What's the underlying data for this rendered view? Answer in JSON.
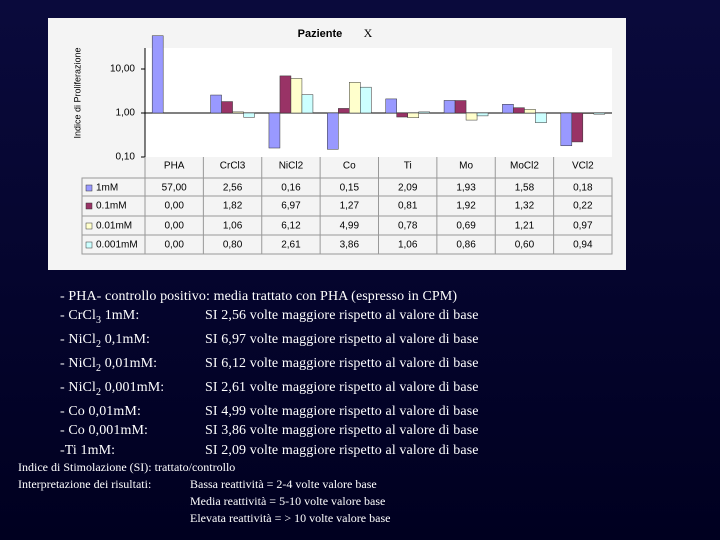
{
  "chart_data": {
    "type": "bar",
    "title": "Paziente",
    "subtitle": "X",
    "y_label": "Indice di Proliferazione",
    "log_scale": true,
    "bar_origin": 1,
    "categories": [
      "PHA",
      "CrCl3",
      "NiCl2",
      "Co",
      "Ti",
      "Mo",
      "MoCl2",
      "VCl2"
    ],
    "ylim": [
      0.1,
      30
    ],
    "yticks": [
      {
        "value": 10,
        "label": "10,00"
      },
      {
        "value": 1,
        "label": "1,00"
      },
      {
        "value": 0.1,
        "label": "0,10"
      }
    ],
    "series": [
      {
        "name": "1mM",
        "color": "#9999ff",
        "values": [
          57,
          2.56,
          0.16,
          0.15,
          2.09,
          1.93,
          1.58,
          0.18
        ],
        "value_labels": [
          "57,00",
          "2,56",
          "0,16",
          "0,15",
          "2,09",
          "1,93",
          "1,58",
          "0,18"
        ]
      },
      {
        "name": "0.1mM",
        "color": "#993366",
        "values": [
          0,
          1.82,
          6.97,
          1.27,
          0.81,
          1.92,
          1.32,
          0.22
        ],
        "value_labels": [
          "0,00",
          "1,82",
          "6,97",
          "1,27",
          "0,81",
          "1,92",
          "1,32",
          "0,22"
        ]
      },
      {
        "name": "0.01mM",
        "color": "#ffffcc",
        "values": [
          0,
          1.06,
          6.12,
          4.99,
          0.78,
          0.69,
          1.21,
          0.97
        ],
        "value_labels": [
          "0,00",
          "1,06",
          "6,12",
          "4,99",
          "0,78",
          "0,69",
          "1,21",
          "0,97"
        ]
      },
      {
        "name": "0.001mM",
        "color": "#ccffff",
        "values": [
          0,
          0.8,
          2.61,
          3.86,
          1.06,
          0.86,
          0.6,
          0.94
        ],
        "value_labels": [
          "0,00",
          "0,80",
          "2,61",
          "3,86",
          "1,06",
          "0,86",
          "0,60",
          "0,94"
        ]
      }
    ]
  },
  "results": {
    "intro": "- PHA- controllo positivo: media trattato con PHA (espresso in CPM)",
    "lines": [
      {
        "label": [
          "- CrCl",
          "3",
          " 1mM:"
        ],
        "text": "SI 2,56 volte maggiore rispetto al valore di base"
      },
      {
        "label": [
          "- NiCl",
          "2",
          " 0,1mM:"
        ],
        "text": "SI 6,97 volte maggiore rispetto al valore di base"
      },
      {
        "label": [
          "- NiCl",
          "2",
          " 0,01mM:"
        ],
        "text": "SI 6,12 volte maggiore rispetto al valore di base"
      },
      {
        "label": [
          "- NiCl",
          "2",
          " 0,001mM:"
        ],
        "text": "SI 2,61 volte maggiore rispetto al valore di base"
      },
      {
        "label": [
          "- Co 0,01mM:"
        ],
        "text": "SI 4,99 volte maggiore rispetto al valore di base"
      },
      {
        "label": [
          "- Co 0,001mM:"
        ],
        "text": "SI 3,86 volte maggiore rispetto al valore di base"
      },
      {
        "label": [
          "-Ti 1mM:"
        ],
        "text": "SI 2,09 volte maggiore rispetto al valore di base"
      }
    ]
  },
  "notes": {
    "definition": "Indice di Stimolazione (SI): trattato/controllo",
    "heading": "Interpretazione dei risultati:",
    "levels": [
      "Bassa reattività = 2-4 volte valore base",
      "Media reattività = 5-10 volte valore base",
      "Elevata reattività = > 10 volte valore base"
    ]
  }
}
